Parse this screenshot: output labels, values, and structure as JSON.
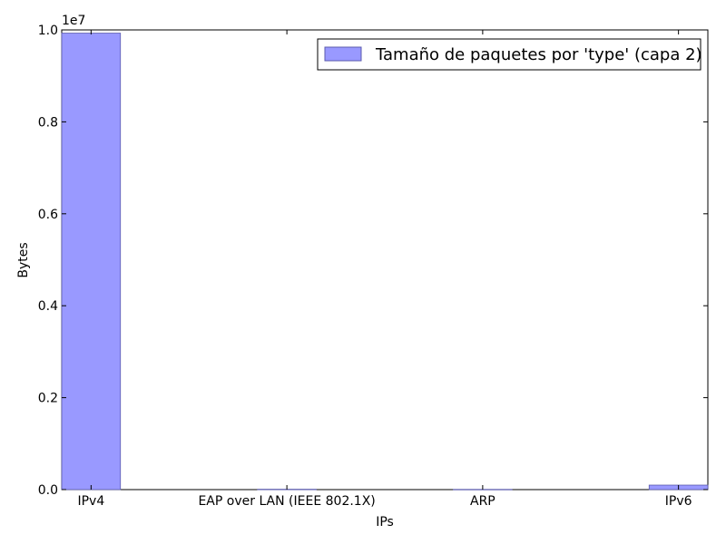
{
  "chart_data": {
    "type": "bar",
    "categories": [
      "IPv4",
      "EAP over LAN (IEEE 802.1X)",
      "ARP",
      "IPv6"
    ],
    "series": [
      {
        "name": "Tamaño de paquetes por 'type' (capa 2)",
        "values": [
          9930000,
          8000,
          5000,
          98000
        ],
        "color": "#9999ff"
      }
    ],
    "xlabel": "IPs",
    "ylabel": "Bytes",
    "ylim": [
      0,
      10000000
    ],
    "yticks": [
      0,
      2000000,
      4000000,
      6000000,
      8000000,
      10000000
    ],
    "ytick_labels": [
      "0.0",
      "0.2",
      "0.4",
      "0.6",
      "0.8",
      "1.0"
    ],
    "y_offset_label": "1e7",
    "legend_position": "top-right",
    "grid": false
  }
}
